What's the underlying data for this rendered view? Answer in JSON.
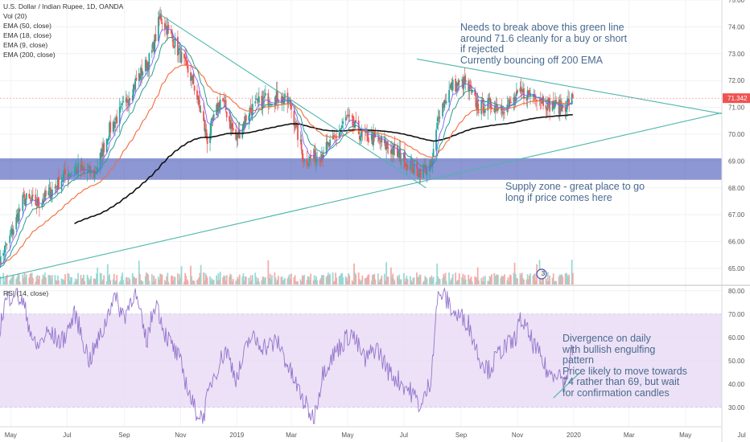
{
  "legend": {
    "title": "U.S. Dollar / Indian Rupee, 1D, OANDA",
    "vol": "Vol (20)",
    "ema50": "EMA (50, close)",
    "ema18": "EMA (18, close)",
    "ema9": "EMA (9, close)",
    "ema200": "EMA (200, close)",
    "rsi": "RSI (14, close)"
  },
  "annotations": {
    "green_line_note": [
      "Needs to break above this green line",
      "around 71.6 cleanly for a buy or short",
      "if rejected",
      "Currently bouncing off 200 EMA"
    ],
    "supply_note": [
      "Supply zone - great place to go",
      "long if price comes here"
    ],
    "divergence_note": [
      "Divergence on daily",
      "with bullish engulfing",
      "pattern",
      "Price likely to move towards",
      "74 rather than 69, but wait",
      "for confirmation candles"
    ]
  },
  "badge": "3",
  "colors": {
    "up": "#26a69a",
    "down": "#ef5350",
    "ema50": "#f26c3c",
    "ema18": "#2a9d8f",
    "ema9": "#7b61ff",
    "ema200": "#111111",
    "trendline": "#4db6ac",
    "zone": "#3f51b5",
    "rsi_line": "#9575cd",
    "rsi_band": "#e9dcf5",
    "price_label": "#ef5350",
    "annotation_text": "#4a6a8f"
  },
  "chart_data": [
    {
      "type": "candlestick",
      "title": "U.S. Dollar / Indian Rupee, 1D, OANDA",
      "x_tick_labels": [
        "May",
        "Jul",
        "Sep",
        "Nov",
        "2019",
        "Mar",
        "May",
        "Jul",
        "Sep",
        "Nov",
        "2020",
        "Mar",
        "May",
        "Jul"
      ],
      "x_range": [
        "2018-04-15",
        "2020-07-10"
      ],
      "y_ticks": [
        65.0,
        66.0,
        67.0,
        68.0,
        69.0,
        70.0,
        71.0,
        72.0,
        73.0,
        74.0,
        75.0
      ],
      "ylim": [
        64.4,
        75.0
      ],
      "last_price": "71.342",
      "close_path": [
        [
          "2018-04-16",
          65.0
        ],
        [
          "2018-05-01",
          66.2
        ],
        [
          "2018-05-15",
          67.6
        ],
        [
          "2018-05-31",
          67.4
        ],
        [
          "2018-06-15",
          67.9
        ],
        [
          "2018-06-29",
          68.5
        ],
        [
          "2018-07-13",
          68.7
        ],
        [
          "2018-07-31",
          68.5
        ],
        [
          "2018-08-15",
          70.1
        ],
        [
          "2018-08-31",
          71.0
        ],
        [
          "2018-09-14",
          72.0
        ],
        [
          "2018-09-30",
          72.9
        ],
        [
          "2018-10-10",
          74.4
        ],
        [
          "2018-10-24",
          73.5
        ],
        [
          "2018-11-15",
          71.9
        ],
        [
          "2018-11-30",
          69.8
        ],
        [
          "2018-12-15",
          71.4
        ],
        [
          "2018-12-31",
          69.8
        ],
        [
          "2019-01-15",
          70.9
        ],
        [
          "2019-01-31",
          71.3
        ],
        [
          "2019-02-15",
          71.4
        ],
        [
          "2019-02-28",
          71.1
        ],
        [
          "2019-03-15",
          69.0
        ],
        [
          "2019-03-31",
          69.2
        ],
        [
          "2019-04-15",
          69.7
        ],
        [
          "2019-04-30",
          70.6
        ],
        [
          "2019-05-15",
          70.0
        ],
        [
          "2019-05-31",
          69.8
        ],
        [
          "2019-06-15",
          69.5
        ],
        [
          "2019-06-30",
          69.1
        ],
        [
          "2019-07-15",
          68.6
        ],
        [
          "2019-07-31",
          68.8
        ],
        [
          "2019-08-08",
          70.8
        ],
        [
          "2019-08-22",
          71.8
        ],
        [
          "2019-09-05",
          71.9
        ],
        [
          "2019-09-20",
          71.0
        ],
        [
          "2019-10-05",
          71.1
        ],
        [
          "2019-10-20",
          71.0
        ],
        [
          "2019-11-05",
          71.5
        ],
        [
          "2019-11-20",
          71.5
        ],
        [
          "2019-12-05",
          71.1
        ],
        [
          "2019-12-20",
          71.0
        ],
        [
          "2019-12-31",
          71.342
        ]
      ],
      "series": [
        {
          "name": "EMA (50, close)"
        },
        {
          "name": "EMA (18, close)"
        },
        {
          "name": "EMA (9, close)"
        },
        {
          "name": "EMA (200, close)"
        },
        {
          "name": "Vol (20)"
        }
      ],
      "supply_zone": {
        "from": 68.3,
        "to": 69.1
      },
      "trendlines": [
        {
          "from": [
            "2018-10-08",
            74.5
          ],
          "to": [
            "2019-07-25",
            68.0
          ]
        },
        {
          "from": [
            "2018-04-15",
            64.6
          ],
          "to": [
            "2020-07-05",
            71.0
          ]
        },
        {
          "from": [
            "2019-07-15",
            72.8
          ],
          "to": [
            "2020-06-20",
            70.7
          ]
        }
      ]
    },
    {
      "type": "line",
      "title": "RSI (14, close)",
      "y_ticks": [
        30.0,
        40.0,
        50.0,
        60.0,
        70.0,
        80.0
      ],
      "ylim": [
        22,
        82
      ],
      "band": [
        30,
        70
      ],
      "points": [
        [
          "2018-04-16",
          58
        ],
        [
          "2018-04-25",
          75
        ],
        [
          "2018-05-05",
          80
        ],
        [
          "2018-05-15",
          74
        ],
        [
          "2018-05-28",
          55
        ],
        [
          "2018-06-10",
          62
        ],
        [
          "2018-06-25",
          58
        ],
        [
          "2018-07-10",
          70
        ],
        [
          "2018-07-25",
          50
        ],
        [
          "2018-08-10",
          64
        ],
        [
          "2018-08-20",
          78
        ],
        [
          "2018-09-01",
          69
        ],
        [
          "2018-09-12",
          80
        ],
        [
          "2018-09-25",
          58
        ],
        [
          "2018-10-05",
          76
        ],
        [
          "2018-10-15",
          62
        ],
        [
          "2018-10-31",
          50
        ],
        [
          "2018-11-15",
          30
        ],
        [
          "2018-11-25",
          25
        ],
        [
          "2018-12-05",
          42
        ],
        [
          "2018-12-20",
          55
        ],
        [
          "2019-01-01",
          42
        ],
        [
          "2019-01-15",
          60
        ],
        [
          "2019-02-01",
          56
        ],
        [
          "2019-02-15",
          58
        ],
        [
          "2019-02-28",
          45
        ],
        [
          "2019-03-15",
          32
        ],
        [
          "2019-03-25",
          25
        ],
        [
          "2019-04-05",
          46
        ],
        [
          "2019-04-20",
          55
        ],
        [
          "2019-05-05",
          62
        ],
        [
          "2019-05-20",
          50
        ],
        [
          "2019-06-01",
          56
        ],
        [
          "2019-06-15",
          45
        ],
        [
          "2019-06-30",
          40
        ],
        [
          "2019-07-10",
          36
        ],
        [
          "2019-07-20",
          30
        ],
        [
          "2019-07-30",
          42
        ],
        [
          "2019-08-06",
          76
        ],
        [
          "2019-08-12",
          79
        ],
        [
          "2019-08-25",
          70
        ],
        [
          "2019-09-08",
          67
        ],
        [
          "2019-09-20",
          52
        ],
        [
          "2019-10-01",
          46
        ],
        [
          "2019-10-15",
          55
        ],
        [
          "2019-10-28",
          58
        ],
        [
          "2019-11-05",
          68
        ],
        [
          "2019-11-12",
          62
        ],
        [
          "2019-11-25",
          52
        ],
        [
          "2019-12-05",
          44
        ],
        [
          "2019-12-15",
          46
        ],
        [
          "2019-12-22",
          40
        ],
        [
          "2019-12-31",
          55
        ]
      ],
      "divergence_line": {
        "from": [
          "2019-12-10",
          34
        ],
        "to": [
          "2020-01-08",
          45
        ]
      }
    }
  ]
}
